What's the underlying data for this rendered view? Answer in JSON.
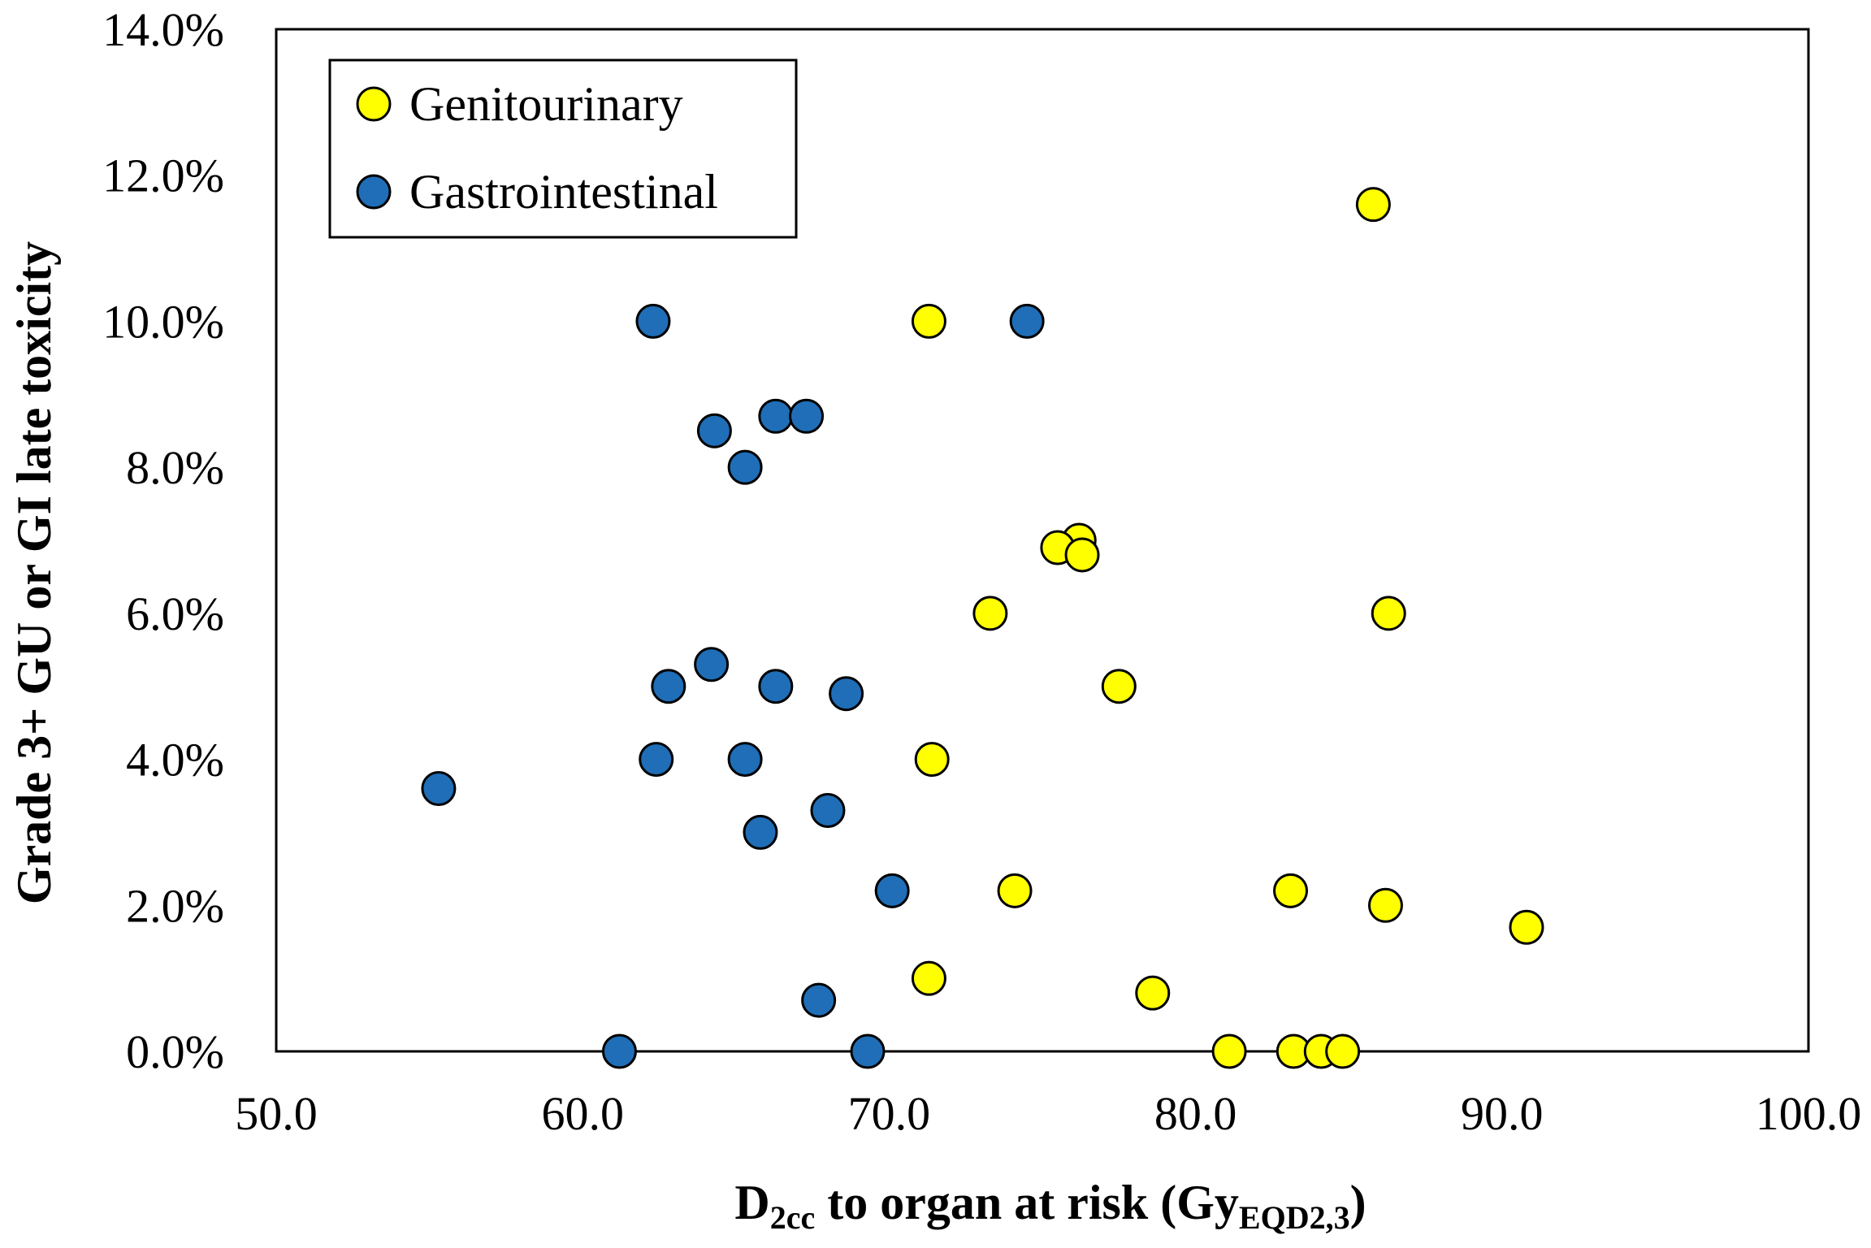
{
  "chart_data": {
    "type": "scatter",
    "title": "",
    "xlabel": {
      "main": "D",
      "sub": "2cc",
      "rest": " to organ at risk (Gy",
      "sub2": "EQD2,3",
      "end": ")"
    },
    "ylabel": "Grade 3+ GU or GI late toxicity",
    "xlim": [
      50,
      100
    ],
    "ylim": [
      0,
      14
    ],
    "x_ticks": [
      50,
      60,
      70,
      80,
      90,
      100
    ],
    "x_tick_labels": [
      "50.0",
      "60.0",
      "70.0",
      "80.0",
      "90.0",
      "100.0"
    ],
    "y_ticks": [
      0,
      2,
      4,
      6,
      8,
      10,
      12,
      14
    ],
    "y_tick_labels": [
      "0.0%",
      "2.0%",
      "4.0%",
      "6.0%",
      "8.0%",
      "10.0%",
      "12.0%",
      "14.0%"
    ],
    "grid": false,
    "legend": {
      "position": "top-left"
    },
    "series": [
      {
        "name": "Genitourinary",
        "color": "#FFFF00",
        "points": [
          {
            "x": 85.8,
            "y": 11.6
          },
          {
            "x": 71.3,
            "y": 10.0
          },
          {
            "x": 76.2,
            "y": 7.0
          },
          {
            "x": 75.5,
            "y": 6.9
          },
          {
            "x": 76.3,
            "y": 6.8
          },
          {
            "x": 73.3,
            "y": 6.0
          },
          {
            "x": 86.3,
            "y": 6.0
          },
          {
            "x": 77.5,
            "y": 5.0
          },
          {
            "x": 71.4,
            "y": 4.0
          },
          {
            "x": 74.1,
            "y": 2.2
          },
          {
            "x": 83.1,
            "y": 2.2
          },
          {
            "x": 86.2,
            "y": 2.0
          },
          {
            "x": 90.8,
            "y": 1.7
          },
          {
            "x": 71.3,
            "y": 1.0
          },
          {
            "x": 78.6,
            "y": 0.8
          },
          {
            "x": 81.1,
            "y": 0.0
          },
          {
            "x": 83.2,
            "y": 0.0
          },
          {
            "x": 84.1,
            "y": 0.0
          },
          {
            "x": 84.8,
            "y": 0.0
          }
        ]
      },
      {
        "name": "Gastrointestinal",
        "color": "#1F6EB7",
        "points": [
          {
            "x": 62.3,
            "y": 10.0
          },
          {
            "x": 74.5,
            "y": 10.0
          },
          {
            "x": 66.3,
            "y": 8.7
          },
          {
            "x": 67.3,
            "y": 8.7
          },
          {
            "x": 64.3,
            "y": 8.5
          },
          {
            "x": 65.3,
            "y": 8.0
          },
          {
            "x": 64.2,
            "y": 5.3
          },
          {
            "x": 62.8,
            "y": 5.0
          },
          {
            "x": 66.3,
            "y": 5.0
          },
          {
            "x": 68.6,
            "y": 4.9
          },
          {
            "x": 62.4,
            "y": 4.0
          },
          {
            "x": 65.3,
            "y": 4.0
          },
          {
            "x": 55.3,
            "y": 3.6
          },
          {
            "x": 68.0,
            "y": 3.3
          },
          {
            "x": 65.8,
            "y": 3.0
          },
          {
            "x": 70.1,
            "y": 2.2
          },
          {
            "x": 67.7,
            "y": 0.7
          },
          {
            "x": 61.2,
            "y": 0.0
          },
          {
            "x": 69.3,
            "y": 0.0
          }
        ]
      }
    ]
  }
}
